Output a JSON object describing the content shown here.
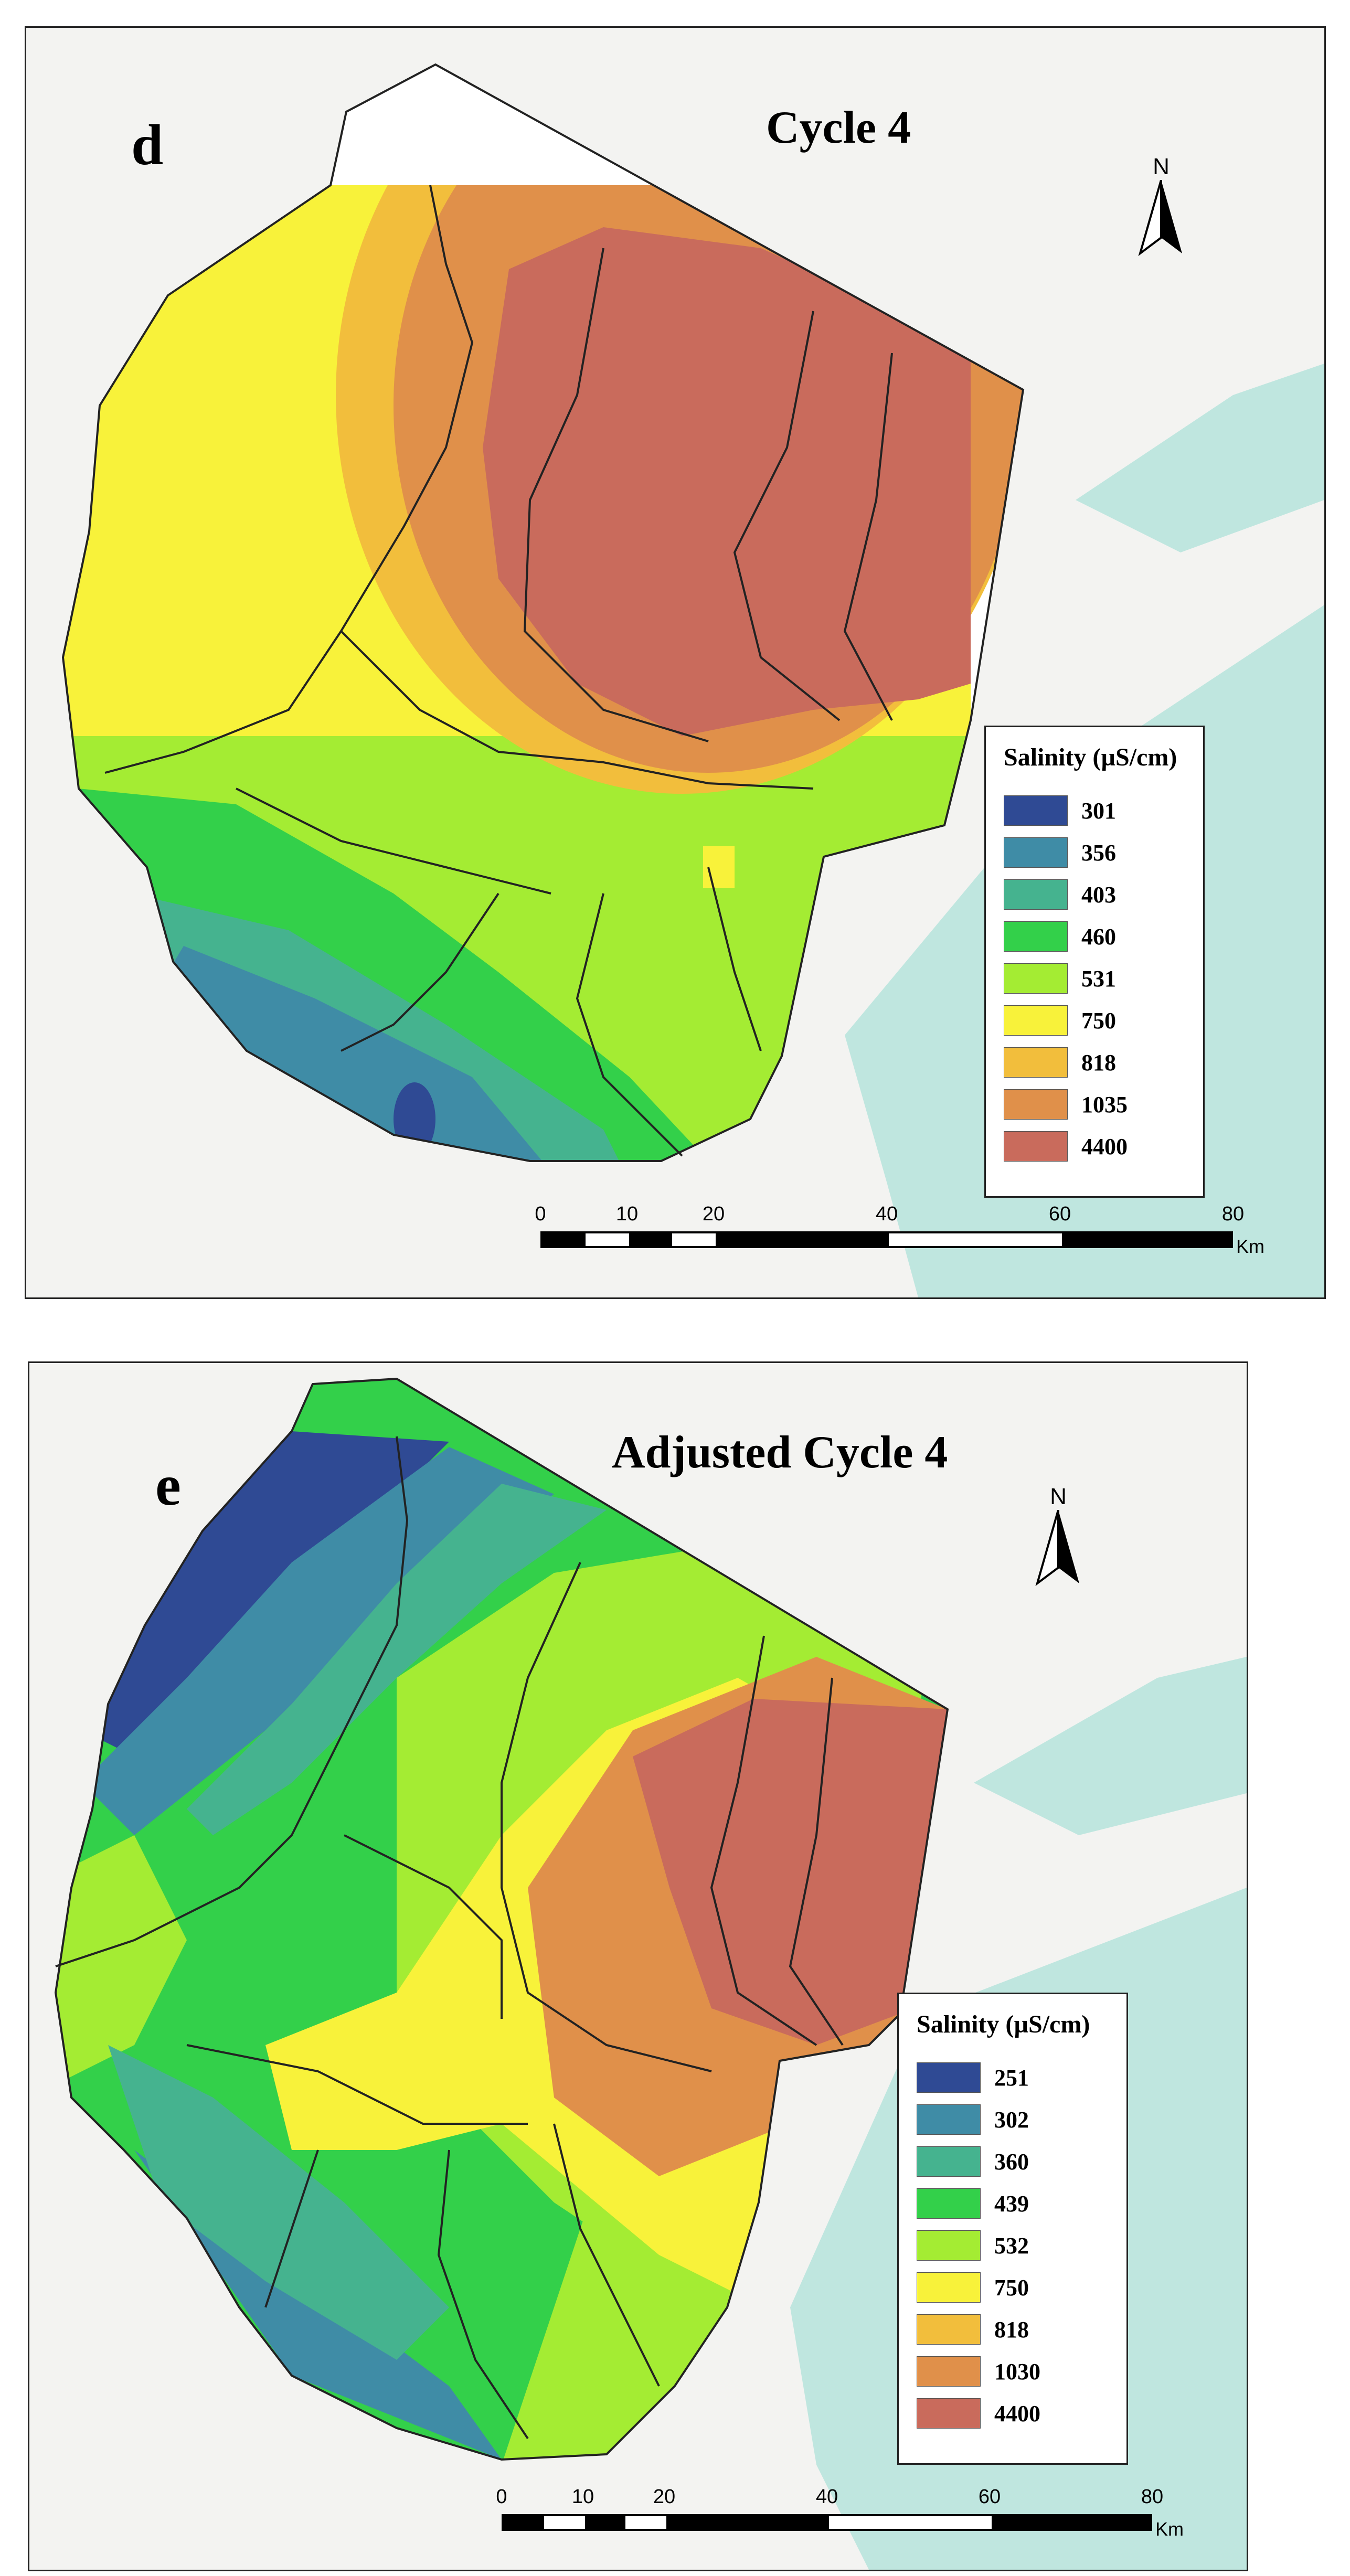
{
  "panels": {
    "d": {
      "letter": "d",
      "title": "Cycle 4",
      "north": "N",
      "legend": {
        "title": "Salinity (µS/cm)",
        "items": [
          {
            "value": "301",
            "color": "#2f4a94"
          },
          {
            "value": "356",
            "color": "#3f8ca6"
          },
          {
            "value": "403",
            "color": "#45b38f"
          },
          {
            "value": "460",
            "color": "#33d04a"
          },
          {
            "value": "531",
            "color": "#a4ec33"
          },
          {
            "value": "750",
            "color": "#f8f23a"
          },
          {
            "value": "818",
            "color": "#f2be3c"
          },
          {
            "value": "1035",
            "color": "#e0904a"
          },
          {
            "value": "4400",
            "color": "#c96b5c"
          }
        ]
      },
      "scale": {
        "ticks": [
          "0",
          "10",
          "20",
          "40",
          "60",
          "80"
        ],
        "unit": "Km"
      }
    },
    "e": {
      "letter": "e",
      "title": "Adjusted Cycle 4",
      "north": "N",
      "legend": {
        "title": "Salinity (µS/cm)",
        "items": [
          {
            "value": "251",
            "color": "#2f4a94"
          },
          {
            "value": "302",
            "color": "#3f8ca6"
          },
          {
            "value": "360",
            "color": "#45b38f"
          },
          {
            "value": "439",
            "color": "#33d04a"
          },
          {
            "value": "532",
            "color": "#a4ec33"
          },
          {
            "value": "750",
            "color": "#f8f23a"
          },
          {
            "value": "818",
            "color": "#f2be3c"
          },
          {
            "value": "1030",
            "color": "#e0904a"
          },
          {
            "value": "4400",
            "color": "#c96b5c"
          }
        ]
      },
      "scale": {
        "ticks": [
          "0",
          "10",
          "20",
          "40",
          "60",
          "80"
        ],
        "unit": "Km"
      }
    }
  }
}
